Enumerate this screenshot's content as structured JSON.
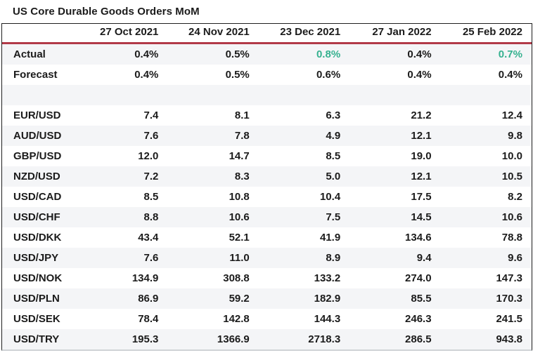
{
  "title": "US Core Durable Goods Orders MoM",
  "colors": {
    "positive_value_color": "#35b18f",
    "header_underline": "#b23a48",
    "row_stripe": "#f4f5f7",
    "table_border_dark": "#1f1f1f",
    "table_border_light": "#cfd3d6",
    "text": "#1b1b1b"
  },
  "chart_data": {
    "type": "table",
    "title": "US Core Durable Goods Orders MoM",
    "columns": [
      "27 Oct 2021",
      "24 Nov 2021",
      "23 Dec 2021",
      "27 Jan 2022",
      "25 Feb 2022"
    ],
    "rows": [
      {
        "label": "Actual",
        "values": [
          "0.4%",
          "0.5%",
          "0.8%",
          "0.4%",
          "0.7%"
        ],
        "highlight": [
          false,
          false,
          true,
          false,
          true
        ]
      },
      {
        "label": "Forecast",
        "values": [
          "0.4%",
          "0.5%",
          "0.6%",
          "0.4%",
          "0.4%"
        ]
      },
      {
        "label": "",
        "values": [
          "",
          "",
          "",
          "",
          ""
        ],
        "spacer": true
      },
      {
        "label": "EUR/USD",
        "values": [
          "7.4",
          "8.1",
          "6.3",
          "21.2",
          "12.4"
        ]
      },
      {
        "label": "AUD/USD",
        "values": [
          "7.6",
          "7.8",
          "4.9",
          "12.1",
          "9.8"
        ]
      },
      {
        "label": "GBP/USD",
        "values": [
          "12.0",
          "14.7",
          "8.5",
          "19.0",
          "10.0"
        ]
      },
      {
        "label": "NZD/USD",
        "values": [
          "7.2",
          "8.3",
          "5.0",
          "12.1",
          "10.5"
        ]
      },
      {
        "label": "USD/CAD",
        "values": [
          "8.5",
          "10.8",
          "10.4",
          "17.5",
          "8.2"
        ]
      },
      {
        "label": "USD/CHF",
        "values": [
          "8.8",
          "10.6",
          "7.5",
          "14.5",
          "10.6"
        ]
      },
      {
        "label": "USD/DKK",
        "values": [
          "43.4",
          "52.1",
          "41.9",
          "134.6",
          "78.8"
        ]
      },
      {
        "label": "USD/JPY",
        "values": [
          "7.6",
          "11.0",
          "8.9",
          "9.4",
          "9.6"
        ]
      },
      {
        "label": "USD/NOK",
        "values": [
          "134.9",
          "308.8",
          "133.2",
          "274.0",
          "147.3"
        ]
      },
      {
        "label": "USD/PLN",
        "values": [
          "86.9",
          "59.2",
          "182.9",
          "85.5",
          "170.3"
        ]
      },
      {
        "label": "USD/SEK",
        "values": [
          "78.4",
          "142.8",
          "144.3",
          "246.3",
          "241.5"
        ]
      },
      {
        "label": "USD/TRY",
        "values": [
          "195.3",
          "1366.9",
          "2718.3",
          "286.5",
          "943.8"
        ]
      }
    ]
  }
}
